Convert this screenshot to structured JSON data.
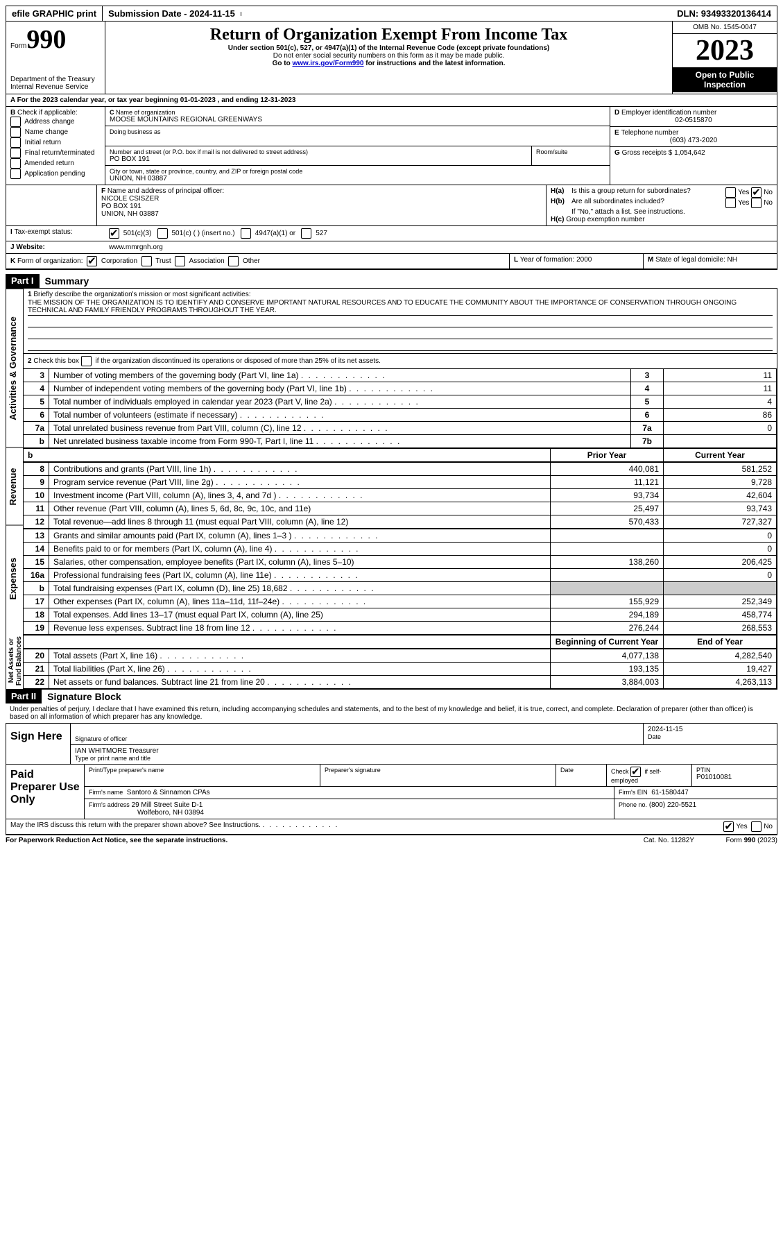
{
  "topbar": {
    "efile": "efile GRAPHIC print",
    "submission_label": "Submission Date - 2024-11-15",
    "dln_label": "DLN: 93493320136414"
  },
  "header": {
    "form_prefix": "Form",
    "form_number": "990",
    "dept": "Department of the Treasury\nInternal Revenue Service",
    "title": "Return of Organization Exempt From Income Tax",
    "subtitle": "Under section 501(c), 527, or 4947(a)(1) of the Internal Revenue Code (except private foundations)",
    "warn": "Do not enter social security numbers on this form as it may be made public.",
    "goto_prefix": "Go to ",
    "goto_link": "www.irs.gov/Form990",
    "goto_suffix": " for instructions and the latest information.",
    "omb": "OMB No. 1545-0047",
    "year": "2023",
    "inspection": "Open to Public Inspection"
  },
  "periodA": {
    "text_a": "For the 2023 calendar year, or tax year beginning ",
    "begin": "01-01-2023",
    "text_b": " , and ending ",
    "end": "12-31-2023"
  },
  "boxB": {
    "header": "Check if applicable:",
    "items": [
      "Address change",
      "Name change",
      "Initial return",
      "Final return/terminated",
      "Amended return",
      "Application pending"
    ]
  },
  "boxC": {
    "name_label": "Name of organization",
    "name": "MOOSE MOUNTAINS REGIONAL GREENWAYS",
    "dba_label": "Doing business as",
    "street_label": "Number and street (or P.O. box if mail is not delivered to street address)",
    "room_label": "Room/suite",
    "street": "PO BOX 191",
    "city_label": "City or town, state or province, country, and ZIP or foreign postal code",
    "city": "UNION, NH  03887"
  },
  "boxD": {
    "label": "Employer identification number",
    "value": "02-0515870"
  },
  "boxE": {
    "label": "Telephone number",
    "value": "(603) 473-2020"
  },
  "boxG": {
    "label": "Gross receipts $",
    "value": "1,054,642"
  },
  "boxF": {
    "label": "Name and address of principal officer:",
    "name": "NICOLE CSISZER",
    "addr1": "PO BOX 191",
    "addr2": "UNION, NH  03887"
  },
  "boxH": {
    "a_label": "Is this a group return for subordinates?",
    "b_label": "Are all subordinates included?",
    "b_note": "If \"No,\" attach a list. See instructions.",
    "c_label": "Group exemption number",
    "yes": "Yes",
    "no": "No"
  },
  "boxI": {
    "label": "Tax-exempt status:",
    "opts": [
      "501(c)(3)",
      "501(c) (  ) (insert no.)",
      "4947(a)(1) or",
      "527"
    ]
  },
  "boxJ": {
    "label": "Website:",
    "value": "www.mmrgnh.org"
  },
  "boxK": {
    "label": "Form of organization:",
    "opts": [
      "Corporation",
      "Trust",
      "Association",
      "Other"
    ]
  },
  "boxL": {
    "label": "Year of formation:",
    "value": "2000"
  },
  "boxM": {
    "label": "State of legal domicile:",
    "value": "NH"
  },
  "part1": {
    "header": "Part I",
    "title": "Summary",
    "side_ag": "Activities & Governance",
    "side_rev": "Revenue",
    "side_exp": "Expenses",
    "side_net": "Net Assets or\nFund Balances",
    "q1_label": "Briefly describe the organization's mission or most significant activities:",
    "mission": "THE MISSION OF THE ORGANIZATION IS TO IDENTIFY AND CONSERVE IMPORTANT NATURAL RESOURCES AND TO EDUCATE THE COMMUNITY ABOUT THE IMPORTANCE OF CONSERVATION THROUGH ONGOING TECHNICAL AND FAMILY FRIENDLY PROGRAMS THROUGHOUT THE YEAR.",
    "q2": "Check this box      if the organization discontinued its operations or disposed of more than 25% of its net assets.",
    "rows_gov": [
      {
        "n": "3",
        "label": "Number of voting members of the governing body (Part VI, line 1a)",
        "box": "3",
        "val": "11"
      },
      {
        "n": "4",
        "label": "Number of independent voting members of the governing body (Part VI, line 1b)",
        "box": "4",
        "val": "11"
      },
      {
        "n": "5",
        "label": "Total number of individuals employed in calendar year 2023 (Part V, line 2a)",
        "box": "5",
        "val": "4"
      },
      {
        "n": "6",
        "label": "Total number of volunteers (estimate if necessary)",
        "box": "6",
        "val": "86"
      },
      {
        "n": "7a",
        "label": "Total unrelated business revenue from Part VIII, column (C), line 12",
        "box": "7a",
        "val": "0"
      },
      {
        "n": "b",
        "label": "Net unrelated business taxable income from Form 990-T, Part I, line 11",
        "box": "7b",
        "val": ""
      }
    ],
    "col_prior": "Prior Year",
    "col_current": "Current Year",
    "rows_rev": [
      {
        "n": "8",
        "label": "Contributions and grants (Part VIII, line 1h)",
        "prior": "440,081",
        "curr": "581,252"
      },
      {
        "n": "9",
        "label": "Program service revenue (Part VIII, line 2g)",
        "prior": "11,121",
        "curr": "9,728"
      },
      {
        "n": "10",
        "label": "Investment income (Part VIII, column (A), lines 3, 4, and 7d )",
        "prior": "93,734",
        "curr": "42,604"
      },
      {
        "n": "11",
        "label": "Other revenue (Part VIII, column (A), lines 5, 6d, 8c, 9c, 10c, and 11e)",
        "prior": "25,497",
        "curr": "93,743"
      },
      {
        "n": "12",
        "label": "Total revenue—add lines 8 through 11 (must equal Part VIII, column (A), line 12)",
        "prior": "570,433",
        "curr": "727,327"
      }
    ],
    "rows_exp": [
      {
        "n": "13",
        "label": "Grants and similar amounts paid (Part IX, column (A), lines 1–3 )",
        "prior": "",
        "curr": "0"
      },
      {
        "n": "14",
        "label": "Benefits paid to or for members (Part IX, column (A), line 4)",
        "prior": "",
        "curr": "0"
      },
      {
        "n": "15",
        "label": "Salaries, other compensation, employee benefits (Part IX, column (A), lines 5–10)",
        "prior": "138,260",
        "curr": "206,425"
      },
      {
        "n": "16a",
        "label": "Professional fundraising fees (Part IX, column (A), line 11e)",
        "prior": "",
        "curr": "0"
      },
      {
        "n": "b",
        "label": "Total fundraising expenses (Part IX, column (D), line 25) 18,682",
        "prior": "GREY",
        "curr": "GREY"
      },
      {
        "n": "17",
        "label": "Other expenses (Part IX, column (A), lines 11a–11d, 11f–24e)",
        "prior": "155,929",
        "curr": "252,349"
      },
      {
        "n": "18",
        "label": "Total expenses. Add lines 13–17 (must equal Part IX, column (A), line 25)",
        "prior": "294,189",
        "curr": "458,774"
      },
      {
        "n": "19",
        "label": "Revenue less expenses. Subtract line 18 from line 12",
        "prior": "276,244",
        "curr": "268,553"
      }
    ],
    "col_begin": "Beginning of Current Year",
    "col_end": "End of Year",
    "rows_net": [
      {
        "n": "20",
        "label": "Total assets (Part X, line 16)",
        "prior": "4,077,138",
        "curr": "4,282,540"
      },
      {
        "n": "21",
        "label": "Total liabilities (Part X, line 26)",
        "prior": "193,135",
        "curr": "19,427"
      },
      {
        "n": "22",
        "label": "Net assets or fund balances. Subtract line 21 from line 20",
        "prior": "3,884,003",
        "curr": "4,263,113"
      }
    ]
  },
  "part2": {
    "header": "Part II",
    "title": "Signature Block",
    "declaration": "Under penalties of perjury, I declare that I have examined this return, including accompanying schedules and statements, and to the best of my knowledge and belief, it is true, correct, and complete. Declaration of preparer (other than officer) is based on all information of which preparer has any knowledge.",
    "sign_here": "Sign Here",
    "sig_officer": "Signature of officer",
    "sig_date": "2024-11-15",
    "officer_name": "IAN WHITMORE  Treasurer",
    "type_name_label": "Type or print name and title",
    "date_label": "Date",
    "paid": "Paid Preparer Use Only",
    "prep_name_label": "Print/Type preparer's name",
    "prep_sig_label": "Preparer's signature",
    "check_self": "Check        if self-employed",
    "ptin_label": "PTIN",
    "ptin": "P01010081",
    "firm_name_label": "Firm's name",
    "firm_name": "Santoro & Sinnamon CPAs",
    "firm_ein_label": "Firm's EIN",
    "firm_ein": "61-1580447",
    "firm_addr_label": "Firm's address",
    "firm_addr1": "29 Mill Street Suite D-1",
    "firm_addr2": "Wolfeboro, NH  03894",
    "phone_label": "Phone no.",
    "phone": "(800) 220-5521",
    "discuss": "May the IRS discuss this return with the preparer shown above? See Instructions."
  },
  "footer": {
    "paperwork": "For Paperwork Reduction Act Notice, see the separate instructions.",
    "catno": "Cat. No. 11282Y",
    "formno": "Form 990 (2023)"
  }
}
